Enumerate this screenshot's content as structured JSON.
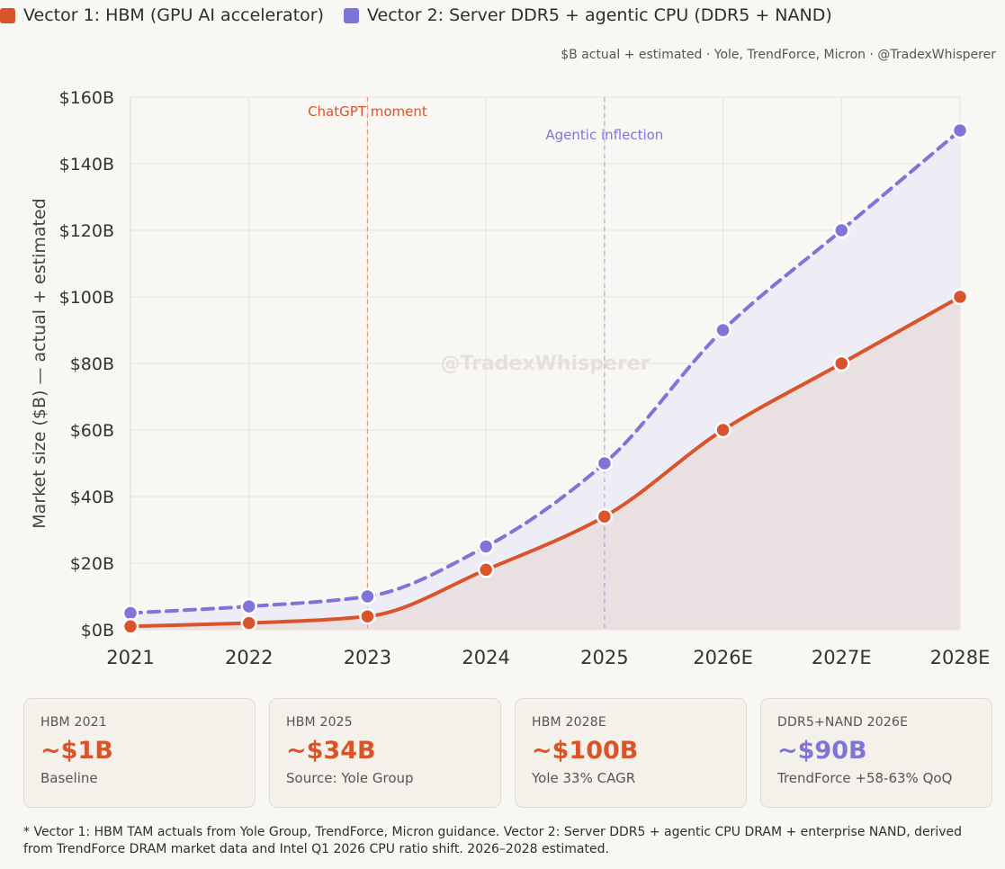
{
  "legend": {
    "items": [
      {
        "label": "Vector 1: HBM (GPU AI accelerator)",
        "color": "#d9542b"
      },
      {
        "label": "Vector 2: Server DDR5 + agentic CPU (DDR5 + NAND)",
        "color": "#7f75d8"
      }
    ]
  },
  "source_note": "$B actual + estimated · Yole, TrendForce, Micron · @TradexWhisperer",
  "watermark": "@TradexWhisperer",
  "chart_data": {
    "type": "line",
    "categories": [
      "2021",
      "2022",
      "2023",
      "2024",
      "2025",
      "2026E",
      "2027E",
      "2028E"
    ],
    "series": [
      {
        "name": "Vector 1: HBM (GPU AI accelerator)",
        "values": [
          1,
          2,
          4,
          18,
          34,
          60,
          80,
          100
        ],
        "color": "#d9542b",
        "style": "solid",
        "fill": "#eadfe1"
      },
      {
        "name": "Vector 2: Server DDR5 + agentic CPU (DDR5 + NAND)",
        "values": [
          5,
          7,
          10,
          25,
          50,
          90,
          120,
          150
        ],
        "color": "#7f75d8",
        "style": "dashed",
        "fill": "#eeedf5"
      }
    ],
    "ylabel": "Market size ($B) — actual + estimated",
    "ylim": [
      0,
      160
    ],
    "yticks": [
      {
        "value": 0,
        "label": "$0B"
      },
      {
        "value": 20,
        "label": "$20B"
      },
      {
        "value": 40,
        "label": "$40B"
      },
      {
        "value": 60,
        "label": "$60B"
      },
      {
        "value": 80,
        "label": "$80B"
      },
      {
        "value": 100,
        "label": "$100B"
      },
      {
        "value": 120,
        "label": "$120B"
      },
      {
        "value": 140,
        "label": "$140B"
      },
      {
        "value": 160,
        "label": "$160B"
      }
    ],
    "grid": true,
    "annotations": [
      {
        "category": "2023",
        "label": "ChatGPT moment",
        "color": "#d9542b"
      },
      {
        "category": "2025",
        "label": "Agentic inflection",
        "color": "#7f75d8"
      }
    ]
  },
  "cards": [
    {
      "label": "HBM 2021",
      "value": "~$1B",
      "sub": "Baseline",
      "color": "#d9542b"
    },
    {
      "label": "HBM 2025",
      "value": "~$34B",
      "sub": "Source: Yole Group",
      "color": "#d9542b"
    },
    {
      "label": "HBM 2028E",
      "value": "~$100B",
      "sub": "Yole 33% CAGR",
      "color": "#d9542b"
    },
    {
      "label": "DDR5+NAND 2026E",
      "value": "~$90B",
      "sub": "TrendForce +58-63% QoQ",
      "color": "#7f75d8"
    }
  ],
  "footnote": "* Vector 1: HBM TAM actuals from Yole Group, TrendForce, Micron guidance. Vector 2: Server DDR5 + agentic CPU DRAM + enterprise NAND, derived from TrendForce DRAM market data and Intel Q1 2026 CPU ratio shift. 2026–2028 estimated."
}
